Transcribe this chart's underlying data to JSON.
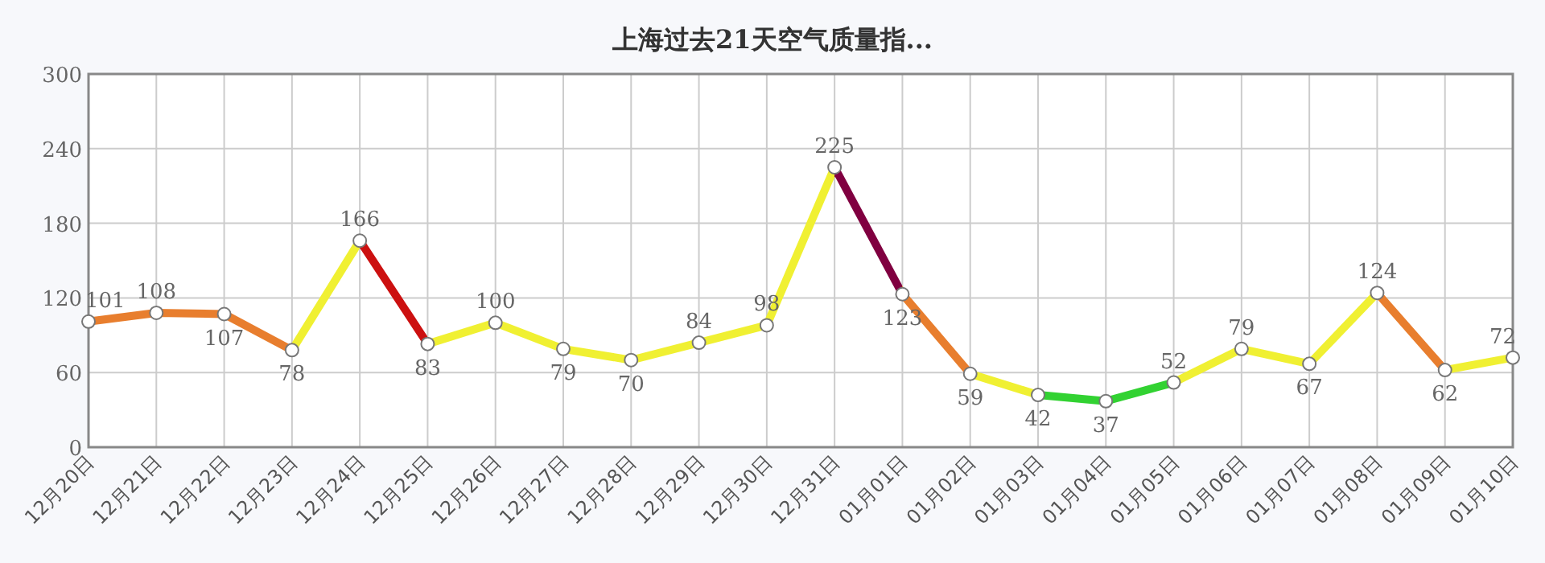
{
  "chart_data": {
    "type": "line",
    "title": "上海过去21天空气质量指...",
    "categories": [
      "12月20日",
      "12月21日",
      "12月22日",
      "12月23日",
      "12月24日",
      "12月25日",
      "12月26日",
      "12月27日",
      "12月28日",
      "12月29日",
      "12月30日",
      "12月31日",
      "01月01日",
      "01月02日",
      "01月03日",
      "01月04日",
      "01月05日",
      "01月06日",
      "01月07日",
      "01月08日",
      "01月09日",
      "01月10日"
    ],
    "series": [
      {
        "values": [
          101,
          108,
          107,
          78,
          166,
          83,
          100,
          79,
          70,
          84,
          98,
          225,
          123,
          59,
          42,
          37,
          52,
          79,
          67,
          124,
          62,
          72
        ],
        "colors": [
          "#e87e2e",
          "#e87e2e",
          "#e87e2e",
          "#f0f032",
          "#cc1010",
          "#f0f032",
          "#f0f032",
          "#f0f032",
          "#f0f032",
          "#f0f032",
          "#f0f032",
          "#800040",
          "#e87e2e",
          "#f0f032",
          "#32d232",
          "#32d232",
          "#f0f032",
          "#f0f032",
          "#f0f032",
          "#e87e2e",
          "#f0f032",
          "#f0f032"
        ]
      }
    ],
    "ylim": [
      0,
      300
    ],
    "yticks": [
      0,
      60,
      120,
      180,
      240,
      300
    ],
    "grid": true,
    "marker": "circle",
    "data_labels": true
  }
}
